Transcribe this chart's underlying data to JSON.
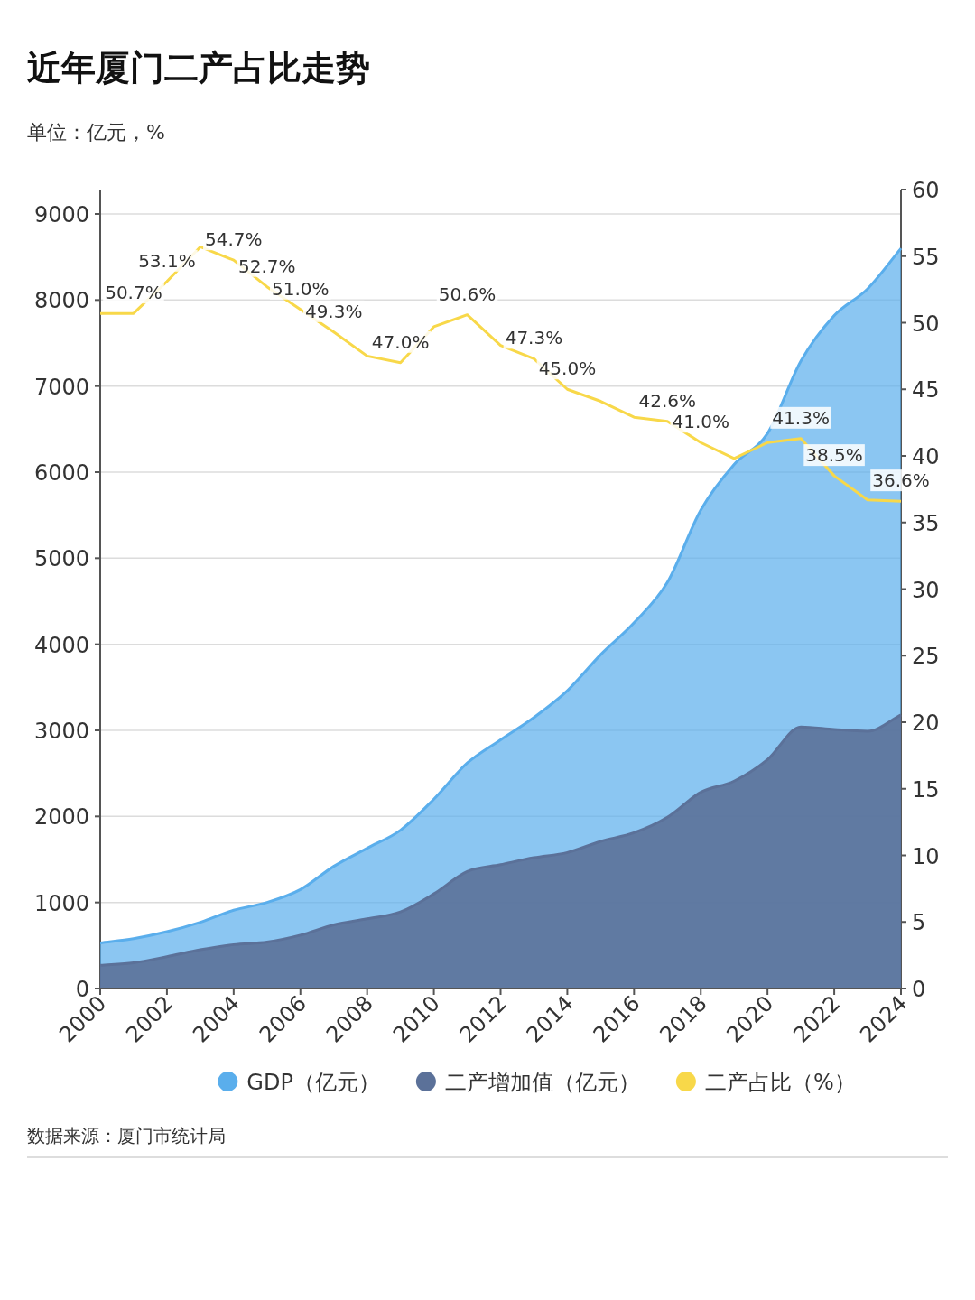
{
  "chart_data": {
    "type": "area",
    "title": "近年厦门二产占比走势",
    "subtitle": "单位：亿元，%",
    "x": [
      2000,
      2001,
      2002,
      2003,
      2004,
      2005,
      2006,
      2007,
      2008,
      2009,
      2010,
      2011,
      2012,
      2013,
      2014,
      2015,
      2016,
      2017,
      2018,
      2019,
      2020,
      2021,
      2022,
      2023,
      2024
    ],
    "xlim": [
      2000,
      2024
    ],
    "xticks": [
      2000,
      2002,
      2004,
      2006,
      2008,
      2010,
      2012,
      2014,
      2016,
      2018,
      2020,
      2022,
      2024
    ],
    "ylim": [
      0,
      9000
    ],
    "yticks": [
      0,
      1000,
      2000,
      3000,
      4000,
      5000,
      6000,
      7000,
      8000,
      9000
    ],
    "y2lim": [
      0,
      60
    ],
    "y2ticks": [
      0,
      5,
      10,
      15,
      20,
      25,
      30,
      35,
      40,
      45,
      50,
      55,
      60
    ],
    "series": [
      {
        "name": "GDP（亿元）",
        "color": "#5aaeec",
        "values": [
          530,
          580,
          660,
          770,
          910,
          1000,
          1150,
          1420,
          1630,
          1840,
          2200,
          2620,
          2890,
          3150,
          3460,
          3880,
          4250,
          4720,
          5560,
          6090,
          6450,
          7290,
          7820,
          8130,
          8600
        ]
      },
      {
        "name": "二产增加值（亿元）",
        "color": "#5b7199",
        "values": [
          270,
          300,
          370,
          450,
          510,
          540,
          620,
          740,
          810,
          890,
          1100,
          1360,
          1440,
          1520,
          1580,
          1710,
          1810,
          1990,
          2280,
          2410,
          2660,
          3040,
          3010,
          2990,
          3180
        ]
      },
      {
        "name": "二产占比（%）",
        "color": "#f8d849",
        "type": "line",
        "axis": "y2",
        "values": [
          50.7,
          50.7,
          53.1,
          55.7,
          54.7,
          52.7,
          51.0,
          49.3,
          47.5,
          47.0,
          49.7,
          50.6,
          48.3,
          47.3,
          45.0,
          44.1,
          42.9,
          42.6,
          41.0,
          39.8,
          41.0,
          41.3,
          38.5,
          36.7,
          36.6
        ],
        "value_labels": [
          null,
          "50.7%",
          "53.1%",
          null,
          "54.7%",
          "52.7%",
          "51.0%",
          "49.3%",
          null,
          "47.0%",
          null,
          "50.6%",
          null,
          "47.3%",
          "45.0%",
          null,
          null,
          "42.6%",
          "41.0%",
          null,
          null,
          "41.3%",
          "38.5%",
          null,
          "36.6%"
        ]
      }
    ],
    "grid": "y",
    "legend": "bottom",
    "marker": "none",
    "line_style": "solid",
    "annotations": [
      "数据来源：厦门市统计局"
    ]
  }
}
